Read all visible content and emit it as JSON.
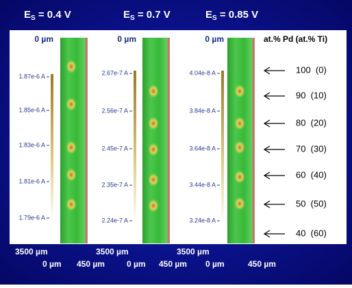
{
  "panels": [
    {
      "symbol": "E",
      "subscript": "S",
      "title_rest": " = 0.4 V",
      "y_top": "0 µm",
      "y_bottom": "3500 µm",
      "x_left": "0 µm",
      "x_right": "450 µm",
      "colorbar_ticks": [
        "1.87e-6 A",
        "1.85e-6 A",
        "1.83e-6 A",
        "1.81e-6 A",
        "1.79e-6 A"
      ]
    },
    {
      "symbol": "E",
      "subscript": "S",
      "title_rest": " = 0.7 V",
      "y_top": "0 µm",
      "y_bottom": "3500 µm",
      "x_left": "0 µm",
      "x_right": "450 µm",
      "colorbar_ticks": [
        "2.67e-7 A",
        "2.56e-7 A",
        "2.45e-7 A",
        "2.35e-7 A",
        "2.24e-7 A"
      ]
    },
    {
      "symbol": "E",
      "subscript": "S",
      "title_rest": " = 0.85 V",
      "y_top": "0 µm",
      "y_bottom": "3500 µm",
      "x_left": "0 µm",
      "x_right": "450 µm",
      "colorbar_ticks": [
        "4.04e-8 A",
        "3.84e-8 A",
        "3.64e-8 A",
        "3.44e-8 A",
        "3.24e-8 A"
      ]
    }
  ],
  "composition_header": "at.% Pd (at.% Ti)",
  "compositions": [
    "100  (0)",
    "90  (10)",
    "80  (20)",
    "70  (30)",
    "60  (40)",
    "50  (50)",
    "40  (60)"
  ]
}
